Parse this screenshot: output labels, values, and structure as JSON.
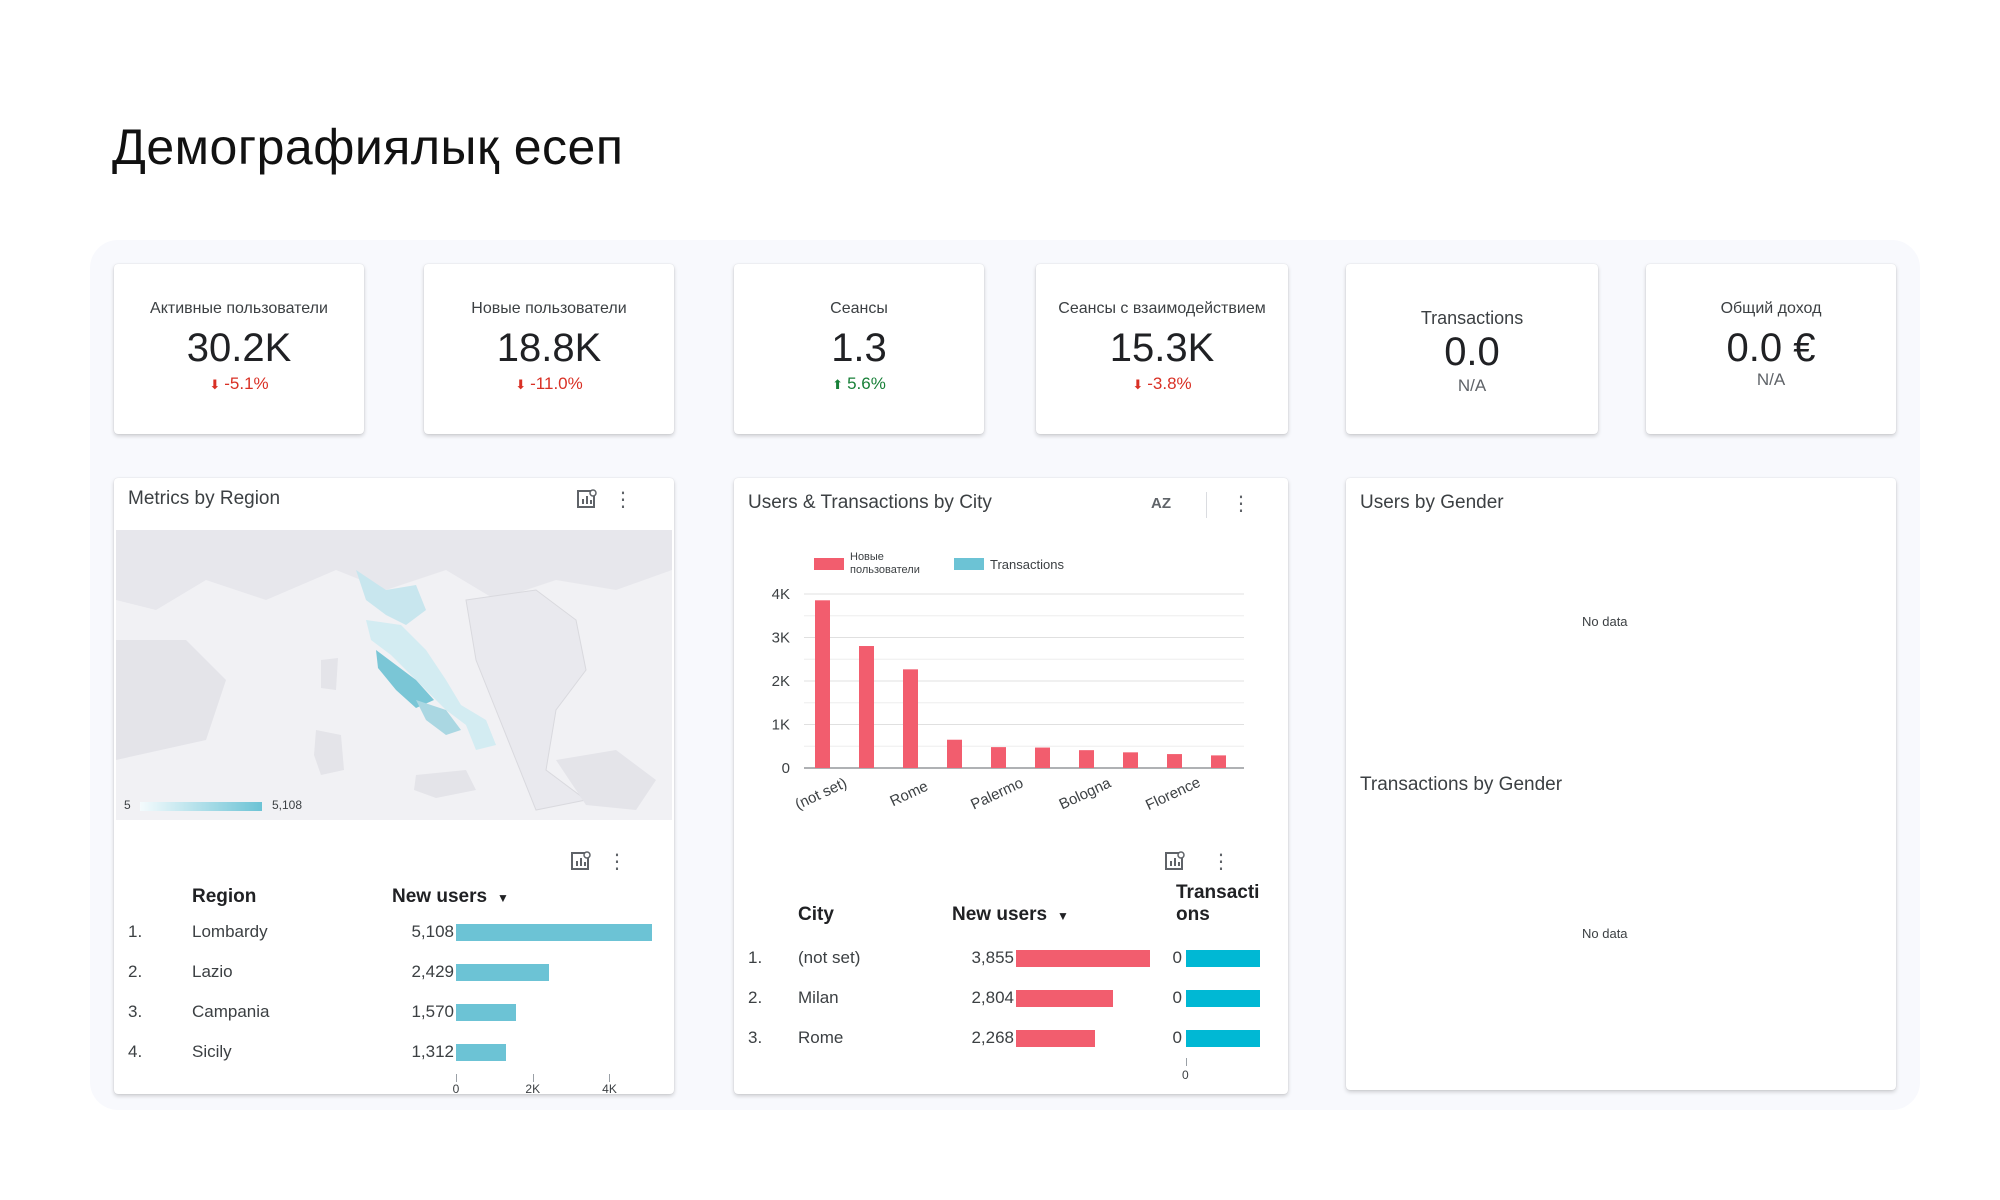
{
  "page": {
    "title": "Демографиялық есеп"
  },
  "kpis": [
    {
      "label": "Активные пользователи",
      "value": "30.2K",
      "delta": "-5.1%",
      "trend": "down"
    },
    {
      "label": "Новые пользователи",
      "value": "18.8K",
      "delta": "-11.0%",
      "trend": "down"
    },
    {
      "label": "Сеансы",
      "value": "1.3",
      "delta": "5.6%",
      "trend": "up"
    },
    {
      "label": "Сеансы с взаимодействием",
      "value": "15.3K",
      "delta": "-3.8%",
      "trend": "down"
    },
    {
      "label": "Transactions",
      "value": "0.0",
      "delta": "N/A",
      "trend": "none"
    },
    {
      "label": "Общий доход",
      "value": "0.0 €",
      "delta": "N/A",
      "trend": "none"
    }
  ],
  "region_card": {
    "title": "Metrics by Region",
    "legend_min": "5",
    "legend_max": "5,108",
    "table": {
      "col_region": "Region",
      "col_users": "New users",
      "rows": [
        {
          "rank": "1.",
          "region": "Lombardy",
          "users_label": "5,108",
          "users": 5108
        },
        {
          "rank": "2.",
          "region": "Lazio",
          "users_label": "2,429",
          "users": 2429
        },
        {
          "rank": "3.",
          "region": "Campania",
          "users_label": "1,570",
          "users": 1570
        },
        {
          "rank": "4.",
          "region": "Sicily",
          "users_label": "1,312",
          "users": 1312
        }
      ],
      "axis_ticks": [
        "0",
        "2K",
        "4K"
      ]
    }
  },
  "city_card": {
    "title": "Users & Transactions by City",
    "sort_icon": "AZ",
    "table": {
      "col_city": "City",
      "col_users": "New users",
      "col_trans": "Transactions",
      "col_trans_line1": "Transacti",
      "col_trans_line2": "ons",
      "rows": [
        {
          "rank": "1.",
          "city": "(not set)",
          "users_label": "3,855",
          "users": 3855,
          "trans": "0"
        },
        {
          "rank": "2.",
          "city": "Milan",
          "users_label": "2,804",
          "users": 2804,
          "trans": "0"
        },
        {
          "rank": "3.",
          "city": "Rome",
          "users_label": "2,268",
          "users": 2268,
          "trans": "0"
        }
      ],
      "trans_axis_tick": "0"
    }
  },
  "gender_card": {
    "title_users": "Users by Gender",
    "title_trans": "Transactions by Gender",
    "no_data": "No data"
  },
  "chart_data": {
    "type": "bar",
    "legend_placement": "top-left",
    "series": [
      {
        "name": "Новые пользователи",
        "color": "#f25d6e",
        "values": [
          3855,
          2804,
          2268,
          650,
          480,
          470,
          410,
          360,
          320,
          290
        ]
      },
      {
        "name": "Transactions",
        "color": "#6cc3d5",
        "values": [
          0,
          0,
          0,
          0,
          0,
          0,
          0,
          0,
          0,
          0
        ]
      }
    ],
    "tick_labels": [
      "(not set)",
      "Rome",
      "Palermo",
      "Bologna",
      "Florence"
    ],
    "yticks": [
      "0",
      "1K",
      "2K",
      "3K",
      "4K"
    ],
    "ylim": [
      0,
      4000
    ],
    "grid": true
  },
  "colors": {
    "teal": "#6cc3d5",
    "red": "#f25d6e",
    "cyan": "#00b8d4"
  }
}
